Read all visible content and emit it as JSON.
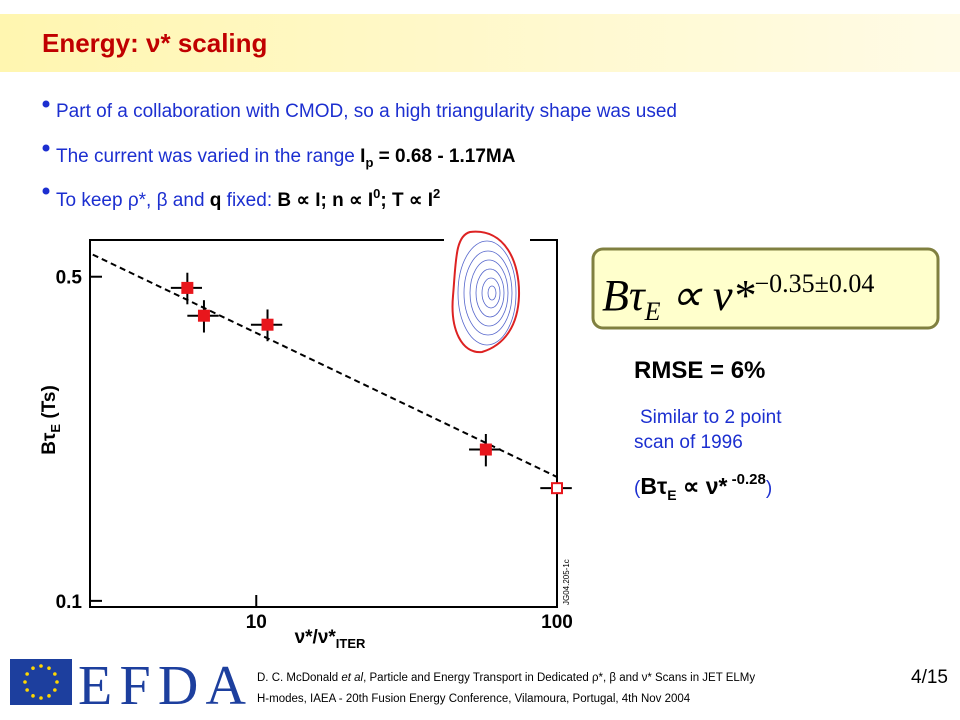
{
  "header": {
    "title": "Energy: ν* scaling"
  },
  "bullets": [
    [
      "Part of a collaboration with CMOD, so a high triangularity shape was used"
    ],
    [
      "The current was varied in the range ",
      "I",
      "p",
      " = 0.68 - 1.17MA"
    ],
    [
      "To keep ",
      "ρ*",
      ", ",
      "β",
      " and ",
      "q",
      " fixed: ",
      "B ∝ I; n ∝ I",
      "0",
      "; T ∝ I",
      "2"
    ]
  ],
  "formula": [
    "Bτ",
    "E",
    "∝ ν*",
    "−0.35±0.04"
  ],
  "rmse": "RMSE = 6%",
  "note": {
    "lines": [
      "Similar to 2 point",
      "scan of 1996"
    ],
    "relation": [
      "(",
      "Bτ",
      "E",
      " ∝ ν*",
      " -0.28",
      ")"
    ]
  },
  "chart_data": {
    "type": "scatter",
    "xlabel": [
      "ν*/ν*",
      "ITER"
    ],
    "ylabel": [
      "Bτ",
      "E",
      " (Ts)"
    ],
    "xlog": true,
    "ylog": true,
    "xlim": [
      2.8,
      100
    ],
    "ylim": [
      0.097,
      0.6
    ],
    "xticks": [
      10,
      100
    ],
    "yticks": [
      0.1,
      0.5
    ],
    "series": [
      {
        "color": "#e8161c",
        "filled": true,
        "x": [
          5.9,
          6.7,
          10.9,
          58
        ],
        "values": [
          0.473,
          0.412,
          0.394,
          0.212
        ],
        "xerr": [
          0.7,
          0.8,
          1.3,
          7
        ],
        "yerr": [
          0.037,
          0.033,
          0.031,
          0.017
        ]
      },
      {
        "color": "#e8161c",
        "filled": false,
        "x": [
          100
        ],
        "values": [
          0.175
        ],
        "xerr": [
          12
        ],
        "yerr": [
          0.014
        ]
      }
    ],
    "fit": {
      "x": [
        2.86,
        100
      ],
      "values": [
        0.558,
        0.185
      ]
    },
    "figure_id": "JG04.205-1c"
  },
  "footer": {
    "citation": [
      "D. C. McDonald ",
      "et al",
      ", Particle and Energy Transport in Dedicated ",
      "ρ*",
      ", ",
      "β",
      " and ",
      "ν*",
      " Scans in JET ELMy",
      "H-modes, IAEA - 20th Fusion Energy Conference, Vilamoura, Portugal,  4th Nov 2004"
    ],
    "page": "4/15",
    "logo": "EFDA"
  }
}
